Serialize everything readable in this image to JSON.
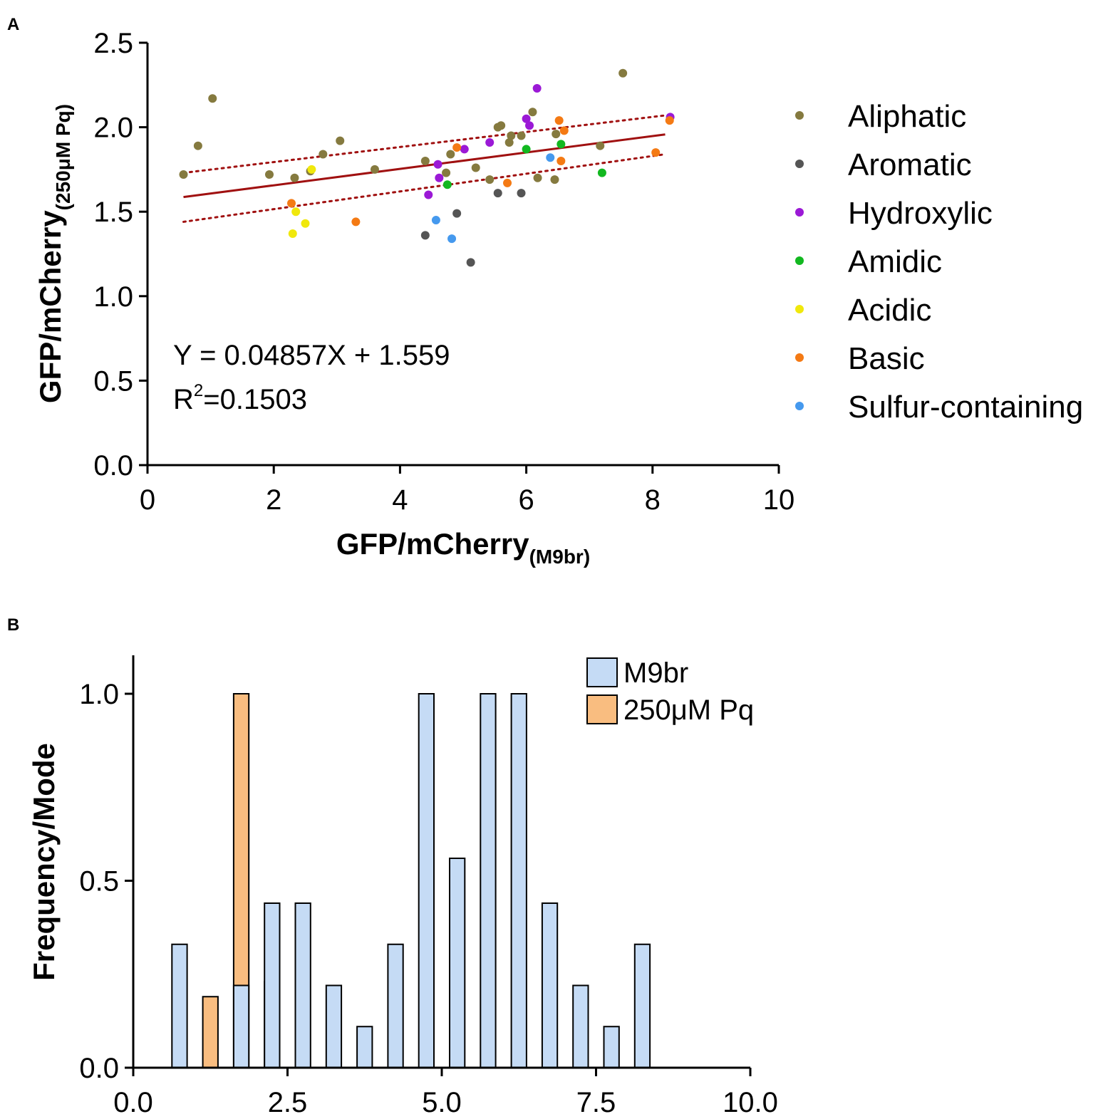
{
  "chart_data": [
    {
      "panel": "A",
      "type": "scatter",
      "xlabel": "GFP/mCherry",
      "xlabel_sub": "(M9br)",
      "ylabel": "GFP/mCherry",
      "ylabel_sub": "(250μM Pq)",
      "xlim": [
        0,
        10
      ],
      "ylim": [
        0,
        2.5
      ],
      "x_ticks": [
        0,
        2,
        4,
        6,
        8,
        10
      ],
      "x_tick_labels": [
        "0",
        "2",
        "4",
        "6",
        "8",
        "10"
      ],
      "y_ticks": [
        0,
        0.5,
        1,
        1.5,
        2,
        2.5
      ],
      "y_tick_labels": [
        "0.0",
        "0.5",
        "1.0",
        "1.5",
        "2.0",
        "2.5"
      ],
      "equation": "Y = 0.04857X + 1.559",
      "r2_prefix": "R",
      "r2_sup": "2",
      "r2_value": "=0.1503",
      "fit": {
        "slope": 0.04857,
        "intercept": 1.559,
        "x_range": [
          0.57,
          8.2
        ],
        "ci_lower": [
          [
            0.57,
            1.44
          ],
          [
            8.2,
            1.84
          ]
        ],
        "ci_upper": [
          [
            0.57,
            1.73
          ],
          [
            8.2,
            2.07
          ]
        ],
        "color": "#a01010"
      },
      "series": [
        {
          "name": "Aliphatic",
          "color": "#857a3f",
          "points": [
            [
              0.57,
              1.72
            ],
            [
              0.8,
              1.89
            ],
            [
              1.03,
              2.17
            ],
            [
              1.93,
              1.72
            ],
            [
              2.33,
              1.7
            ],
            [
              2.58,
              1.74
            ],
            [
              2.78,
              1.84
            ],
            [
              3.05,
              1.92
            ],
            [
              3.6,
              1.75
            ],
            [
              4.4,
              1.8
            ],
            [
              4.73,
              1.73
            ],
            [
              4.8,
              1.84
            ],
            [
              5.2,
              1.76
            ],
            [
              5.42,
              1.69
            ],
            [
              5.55,
              2.0
            ],
            [
              5.6,
              2.01
            ],
            [
              5.73,
              1.91
            ],
            [
              5.76,
              1.95
            ],
            [
              5.92,
              1.95
            ],
            [
              6.1,
              2.09
            ],
            [
              6.18,
              1.7
            ],
            [
              6.45,
              1.69
            ],
            [
              6.47,
              1.96
            ],
            [
              7.17,
              1.89
            ],
            [
              7.53,
              2.32
            ]
          ]
        },
        {
          "name": "Aromatic",
          "color": "#555555",
          "points": [
            [
              4.4,
              1.36
            ],
            [
              4.9,
              1.49
            ],
            [
              5.12,
              1.2
            ],
            [
              5.55,
              1.61
            ],
            [
              5.92,
              1.61
            ]
          ]
        },
        {
          "name": "Hydroxylic",
          "color": "#9b19d6",
          "points": [
            [
              4.45,
              1.6
            ],
            [
              4.6,
              1.78
            ],
            [
              4.62,
              1.7
            ],
            [
              5.02,
              1.87
            ],
            [
              5.42,
              1.91
            ],
            [
              6.0,
              2.05
            ],
            [
              6.05,
              2.01
            ],
            [
              6.17,
              2.23
            ],
            [
              8.28,
              2.06
            ]
          ]
        },
        {
          "name": "Amidic",
          "color": "#12b820",
          "points": [
            [
              4.75,
              1.66
            ],
            [
              6.0,
              1.87
            ],
            [
              6.55,
              1.9
            ],
            [
              7.2,
              1.73
            ]
          ]
        },
        {
          "name": "Acidic",
          "color": "#f0e80c",
          "points": [
            [
              2.3,
              1.37
            ],
            [
              2.35,
              1.5
            ],
            [
              2.5,
              1.43
            ],
            [
              2.6,
              1.75
            ]
          ]
        },
        {
          "name": "Basic",
          "color": "#f47a14",
          "points": [
            [
              2.28,
              1.55
            ],
            [
              3.3,
              1.44
            ],
            [
              4.9,
              1.88
            ],
            [
              5.7,
              1.67
            ],
            [
              6.52,
              2.04
            ],
            [
              6.55,
              1.8
            ],
            [
              6.6,
              1.98
            ],
            [
              8.05,
              1.85
            ],
            [
              8.27,
              2.04
            ]
          ]
        },
        {
          "name": "Sulfur-containing",
          "color": "#4599ee",
          "points": [
            [
              4.57,
              1.45
            ],
            [
              4.82,
              1.34
            ],
            [
              6.38,
              1.82
            ]
          ]
        }
      ]
    },
    {
      "panel": "B",
      "type": "bar",
      "ylabel": "Frequency/Mode",
      "xlim": [
        0,
        10
      ],
      "ylim": [
        0,
        1.1
      ],
      "x_ticks": [
        0,
        2.5,
        5,
        7.5,
        10
      ],
      "x_tick_labels": [
        "0.0",
        "2.5",
        "5.0",
        "7.5",
        "10.0"
      ],
      "y_ticks": [
        0,
        0.5,
        1
      ],
      "y_tick_labels": [
        "0.0",
        "0.5",
        "1.0"
      ],
      "bin_width": 0.5,
      "series": [
        {
          "name": "M9br",
          "color": "#c5dbf5",
          "bins": [
            [
              0.5,
              1.0,
              0.33
            ],
            [
              1.5,
              2.0,
              0.22
            ],
            [
              2.0,
              2.5,
              0.44
            ],
            [
              2.5,
              3.0,
              0.44
            ],
            [
              3.0,
              3.5,
              0.22
            ],
            [
              3.5,
              4.0,
              0.11
            ],
            [
              4.0,
              4.5,
              0.33
            ],
            [
              4.5,
              5.0,
              1.0
            ],
            [
              5.0,
              5.5,
              0.56
            ],
            [
              5.5,
              6.0,
              1.0
            ],
            [
              6.0,
              6.5,
              1.0
            ],
            [
              6.5,
              7.0,
              0.44
            ],
            [
              7.0,
              7.5,
              0.22
            ],
            [
              7.5,
              8.0,
              0.11
            ],
            [
              8.0,
              8.5,
              0.33
            ]
          ]
        },
        {
          "name": "250μM Pq",
          "color": "#f9bd80",
          "bins": [
            [
              1.0,
              1.5,
              0.19
            ],
            [
              1.5,
              2.0,
              1.0
            ],
            [
              2.0,
              2.5,
              0.23
            ]
          ]
        }
      ]
    }
  ],
  "labels": {
    "panel_a": "A",
    "panel_b": "B"
  }
}
